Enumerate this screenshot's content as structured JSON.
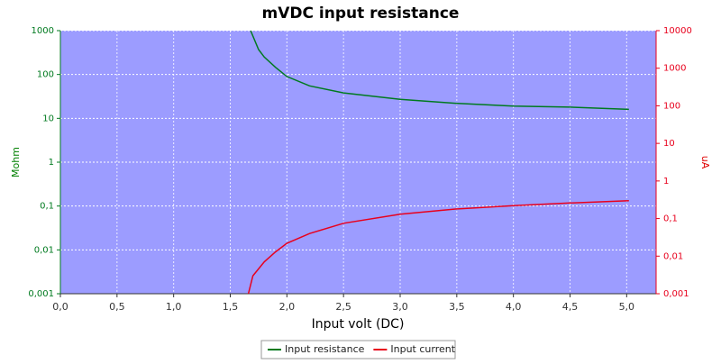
{
  "chart_data": {
    "type": "line",
    "title": "mVDC input resistance",
    "x_label": "Input volt (DC)",
    "y_label": "Mohm",
    "y2_label": "uA",
    "xlim": [
      0,
      5.26
    ],
    "xticks": [
      {
        "value": 0,
        "label": "0,0"
      },
      {
        "value": 0.5,
        "label": "0,5"
      },
      {
        "value": 1,
        "label": "1,0"
      },
      {
        "value": 1.5,
        "label": "1,5"
      },
      {
        "value": 2,
        "label": "2,0"
      },
      {
        "value": 2.5,
        "label": "2,5"
      },
      {
        "value": 3,
        "label": "3,0"
      },
      {
        "value": 3.5,
        "label": "3,5"
      },
      {
        "value": 4,
        "label": "4,0"
      },
      {
        "value": 4.5,
        "label": "4,5"
      },
      {
        "value": 5,
        "label": "5,0"
      }
    ],
    "ylim": [
      0.001,
      1000
    ],
    "yticks": [
      {
        "value": 0.001,
        "label": "0,001"
      },
      {
        "value": 0.01,
        "label": "0,01"
      },
      {
        "value": 0.1,
        "label": "0,1"
      },
      1,
      10,
      100,
      1000
    ],
    "y2lim": [
      0.001,
      10000
    ],
    "y2ticks": [
      {
        "value": 0.001,
        "label": "0,001"
      },
      {
        "value": 0.01,
        "label": "0,01"
      },
      {
        "value": 0.1,
        "label": "0,1"
      },
      1,
      10,
      100,
      1000,
      10000
    ],
    "y_log": true,
    "y2_log": true,
    "grid": true,
    "legend": "bottom",
    "series": [
      {
        "name": "Input resistance",
        "color": "#007a1f",
        "x": [
          1.68,
          1.75,
          1.8,
          1.9,
          2.0,
          2.2,
          2.5,
          3.0,
          3.5,
          4.0,
          4.5,
          5.02
        ],
        "values": [
          1000,
          370,
          250,
          145,
          90,
          55,
          38,
          27,
          22,
          19,
          18,
          16
        ]
      },
      {
        "name": "Input current",
        "color": "#e8001c",
        "axis": "y2",
        "x": [
          1.66,
          1.7,
          1.8,
          1.9,
          2.0,
          2.2,
          2.5,
          3.0,
          3.5,
          4.0,
          4.5,
          5.02
        ],
        "values": [
          0.001,
          0.003,
          0.007,
          0.013,
          0.022,
          0.04,
          0.075,
          0.13,
          0.18,
          0.22,
          0.26,
          0.3
        ]
      }
    ]
  }
}
